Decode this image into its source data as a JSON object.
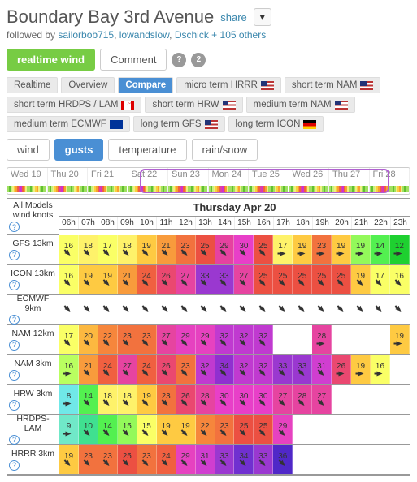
{
  "header": {
    "title": "Boundary Bay 3rd Avenue",
    "share_label": "share",
    "followed_prefix": "followed by ",
    "followers": [
      "sailorbob715",
      "lowandslow",
      "Dschick"
    ],
    "more_followers": "+ 105 others"
  },
  "toolbar": {
    "realtime": "realtime wind",
    "comment": "Comment",
    "comment_count": "2",
    "tabs": [
      "Realtime",
      "Overview",
      "Compare"
    ],
    "active_tab": 2
  },
  "model_pills": [
    {
      "label": "micro term HRRR",
      "flag": "us"
    },
    {
      "label": "short term NAM",
      "flag": "us"
    },
    {
      "label": "short term HRDPS / LAM",
      "flag": "ca"
    },
    {
      "label": "short term HRW",
      "flag": "us"
    },
    {
      "label": "medium term NAM",
      "flag": "us"
    },
    {
      "label": "medium term ECMWF",
      "flag": "eu"
    },
    {
      "label": "long term GFS",
      "flag": "us"
    },
    {
      "label": "long term ICON",
      "flag": "de"
    }
  ],
  "var_tabs": [
    "wind",
    "gusts",
    "temperature",
    "rain/snow"
  ],
  "var_active": 1,
  "day_band": {
    "days": [
      "Wed 19",
      "Thu 20",
      "Fri 21",
      "Sat 22",
      "Sun 23",
      "Mon 24",
      "Tue 25",
      "Wed 26",
      "Thu 27",
      "Fri 28"
    ],
    "sel_start_pct": 33,
    "sel_width_pct": 62,
    "strip_colors": [
      "#a0e060",
      "#60c030",
      "#c8f080",
      "#f0f080",
      "#f8d040",
      "#f8a030",
      "#f06040",
      "#e040a0",
      "#d030d0",
      "#f06040",
      "#f8a030",
      "#f0f080",
      "#a0e060",
      "#a0e060",
      "#60c030",
      "#a0e060",
      "#f0f080",
      "#f8d040",
      "#f8a030",
      "#f0f080",
      "#a0e060",
      "#60c030",
      "#a0e060",
      "#a0e060"
    ]
  },
  "grid": {
    "left_head": [
      "All Models",
      "wind knots"
    ],
    "date_title": "Thursday Apr 20",
    "hours": [
      "06h",
      "07h",
      "08h",
      "09h",
      "10h",
      "11h",
      "12h",
      "13h",
      "14h",
      "15h",
      "16h",
      "17h",
      "18h",
      "19h",
      "20h",
      "21h",
      "22h",
      "23h"
    ],
    "rows": [
      {
        "name": "GFS 13km",
        "cells": [
          {
            "v": "16",
            "c": "#faff66",
            "d": 135
          },
          {
            "v": "18",
            "c": "#fef26a",
            "d": 135
          },
          {
            "v": "17",
            "c": "#faff66",
            "d": 135
          },
          {
            "v": "18",
            "c": "#fef26a",
            "d": 135
          },
          {
            "v": "19",
            "c": "#feca42",
            "d": 135
          },
          {
            "v": "21",
            "c": "#f89b3c",
            "d": 135
          },
          {
            "v": "23",
            "c": "#f2723e",
            "d": 135
          },
          {
            "v": "25",
            "c": "#ec5042",
            "d": 135
          },
          {
            "v": "29",
            "c": "#e642a0",
            "d": 135
          },
          {
            "v": "30",
            "c": "#e83fc8",
            "d": 135
          },
          {
            "v": "25",
            "c": "#ec5042",
            "d": 135
          },
          {
            "v": "17",
            "c": "#fef26a",
            "d": 90
          },
          {
            "v": "19",
            "c": "#feca42",
            "d": 90
          },
          {
            "v": "23",
            "c": "#f2723e",
            "d": 90
          },
          {
            "v": "19",
            "c": "#feca42",
            "d": 90
          },
          {
            "v": "19",
            "c": "#93f95a",
            "d": 90
          },
          {
            "v": "14",
            "c": "#53f050",
            "d": 90
          },
          {
            "v": "12",
            "c": "#1ed030",
            "d": 90
          }
        ]
      },
      {
        "name": "ICON 13km",
        "cells": [
          {
            "v": "16",
            "c": "#faff66",
            "d": 135
          },
          {
            "v": "19",
            "c": "#feca42",
            "d": 135
          },
          {
            "v": "19",
            "c": "#feca42",
            "d": 135
          },
          {
            "v": "21",
            "c": "#f89b3c",
            "d": 135
          },
          {
            "v": "24",
            "c": "#f06040",
            "d": 135
          },
          {
            "v": "26",
            "c": "#ea4870",
            "d": 135
          },
          {
            "v": "27",
            "c": "#e644a0",
            "d": 135
          },
          {
            "v": "33",
            "c": "#9a38d0",
            "d": 135
          },
          {
            "v": "33",
            "c": "#9a38d0",
            "d": 135
          },
          {
            "v": "27",
            "c": "#e644a0",
            "d": 135
          },
          {
            "v": "25",
            "c": "#ec5042",
            "d": 135
          },
          {
            "v": "25",
            "c": "#ec5042",
            "d": 135
          },
          {
            "v": "25",
            "c": "#ec5042",
            "d": 135
          },
          {
            "v": "25",
            "c": "#ec5042",
            "d": 135
          },
          {
            "v": "25",
            "c": "#ec5042",
            "d": 135
          },
          {
            "v": "19",
            "c": "#feca42",
            "d": 135
          },
          {
            "v": "17",
            "c": "#faff66",
            "d": 135
          },
          {
            "v": "16",
            "c": "#faff66",
            "d": 135
          }
        ]
      },
      {
        "name": "ECMWF 9km",
        "cells": [
          {
            "v": "",
            "c": "#fff",
            "d": 135
          },
          {
            "v": "",
            "c": "#fff",
            "d": 135
          },
          {
            "v": "",
            "c": "#fff",
            "d": 135
          },
          {
            "v": "",
            "c": "#fff",
            "d": 135
          },
          {
            "v": "",
            "c": "#fff",
            "d": 135
          },
          {
            "v": "",
            "c": "#fff",
            "d": 135
          },
          {
            "v": "",
            "c": "#fff",
            "d": 135
          },
          {
            "v": "",
            "c": "#fff",
            "d": 135
          },
          {
            "v": "",
            "c": "#fff",
            "d": 135
          },
          {
            "v": "",
            "c": "#fff",
            "d": 135
          },
          {
            "v": "",
            "c": "#fff",
            "d": 135
          },
          {
            "v": "",
            "c": "#fff",
            "d": 135
          },
          {
            "v": "",
            "c": "#fff",
            "d": 135
          },
          {
            "v": "",
            "c": "#fff",
            "d": 135
          },
          {
            "v": "",
            "c": "#fff",
            "d": 135
          },
          {
            "v": "",
            "c": "#fff",
            "d": 135
          },
          {
            "v": "",
            "c": "#fff",
            "d": 135
          },
          {
            "v": "",
            "c": "#fff",
            "d": 135
          }
        ]
      },
      {
        "name": "NAM 12km",
        "cells": [
          {
            "v": "17",
            "c": "#faff66",
            "d": 135
          },
          {
            "v": "20",
            "c": "#fcb840",
            "d": 135
          },
          {
            "v": "22",
            "c": "#f6863c",
            "d": 135
          },
          {
            "v": "23",
            "c": "#f2723e",
            "d": 135
          },
          {
            "v": "23",
            "c": "#f2723e",
            "d": 135
          },
          {
            "v": "27",
            "c": "#e644a0",
            "d": 135
          },
          {
            "v": "29",
            "c": "#e642c0",
            "d": 135
          },
          {
            "v": "29",
            "c": "#e642c0",
            "d": 135
          },
          {
            "v": "32",
            "c": "#c03ad0",
            "d": 135
          },
          {
            "v": "32",
            "c": "#c03ad0",
            "d": 135
          },
          {
            "v": "32",
            "c": "#c03ad0",
            "d": 135
          },
          null,
          null,
          {
            "v": "28",
            "c": "#e644a0",
            "d": 90
          },
          null,
          null,
          null,
          {
            "v": "19",
            "c": "#feca42",
            "d": 90
          }
        ]
      },
      {
        "name": "NAM 3km",
        "cells": [
          {
            "v": "16",
            "c": "#b9ff60",
            "d": 90
          },
          {
            "v": "21",
            "c": "#f89b3c",
            "d": 135
          },
          {
            "v": "24",
            "c": "#f06040",
            "d": 135
          },
          {
            "v": "27",
            "c": "#e644a0",
            "d": 135
          },
          {
            "v": "24",
            "c": "#f06040",
            "d": 135
          },
          {
            "v": "26",
            "c": "#ea4870",
            "d": 135
          },
          {
            "v": "23",
            "c": "#f2723e",
            "d": 135
          },
          {
            "v": "32",
            "c": "#c03ad0",
            "d": 135
          },
          {
            "v": "34",
            "c": "#9030d0",
            "d": 135
          },
          {
            "v": "32",
            "c": "#c03ad0",
            "d": 135
          },
          {
            "v": "32",
            "c": "#c03ad0",
            "d": 135
          },
          {
            "v": "33",
            "c": "#9a38d0",
            "d": 135
          },
          {
            "v": "33",
            "c": "#9a38d0",
            "d": 135
          },
          {
            "v": "31",
            "c": "#d03ed0",
            "d": 135
          },
          {
            "v": "26",
            "c": "#ea4870",
            "d": 90
          },
          {
            "v": "19",
            "c": "#feca42",
            "d": 90
          },
          {
            "v": "16",
            "c": "#faff66",
            "d": 90
          },
          null
        ]
      },
      {
        "name": "HRW 3km",
        "cells": [
          {
            "v": "8",
            "c": "#70e8e8",
            "d": 90
          },
          {
            "v": "14",
            "c": "#53f050",
            "d": 135
          },
          {
            "v": "18",
            "c": "#fef26a",
            "d": 135
          },
          {
            "v": "18",
            "c": "#fef26a",
            "d": 135
          },
          {
            "v": "19",
            "c": "#feca42",
            "d": 135
          },
          {
            "v": "23",
            "c": "#f2723e",
            "d": 135
          },
          {
            "v": "26",
            "c": "#ea4870",
            "d": 135
          },
          {
            "v": "28",
            "c": "#e644a0",
            "d": 135
          },
          {
            "v": "30",
            "c": "#e83fc8",
            "d": 135
          },
          {
            "v": "30",
            "c": "#e83fc8",
            "d": 135
          },
          {
            "v": "30",
            "c": "#e83fc8",
            "d": 135
          },
          {
            "v": "27",
            "c": "#e644a0",
            "d": 135
          },
          {
            "v": "28",
            "c": "#e644a0",
            "d": 135
          },
          {
            "v": "27",
            "c": "#e644a0",
            "d": 135
          },
          null,
          null,
          null,
          null
        ]
      },
      {
        "name": "HRDPS-LAM",
        "cells": [
          {
            "v": "9",
            "c": "#70e8c8",
            "d": 90
          },
          {
            "v": "10",
            "c": "#40e090",
            "d": 135
          },
          {
            "v": "14",
            "c": "#53f050",
            "d": 135
          },
          {
            "v": "15",
            "c": "#93f95a",
            "d": 135
          },
          {
            "v": "15",
            "c": "#faff66",
            "d": 135
          },
          {
            "v": "19",
            "c": "#feca42",
            "d": 135
          },
          {
            "v": "19",
            "c": "#feca42",
            "d": 135
          },
          {
            "v": "22",
            "c": "#f6863c",
            "d": 135
          },
          {
            "v": "23",
            "c": "#f2723e",
            "d": 135
          },
          {
            "v": "25",
            "c": "#ec5042",
            "d": 135
          },
          {
            "v": "25",
            "c": "#ec5042",
            "d": 135
          },
          {
            "v": "29",
            "c": "#e642c0",
            "d": 135
          },
          null,
          null,
          null,
          null,
          null,
          null
        ]
      },
      {
        "name": "HRRR 3km",
        "cells": [
          {
            "v": "19",
            "c": "#feca42",
            "d": 135
          },
          {
            "v": "23",
            "c": "#f2723e",
            "d": 135
          },
          {
            "v": "23",
            "c": "#f2723e",
            "d": 135
          },
          {
            "v": "25",
            "c": "#ec5042",
            "d": 135
          },
          {
            "v": "23",
            "c": "#f2723e",
            "d": 135
          },
          {
            "v": "24",
            "c": "#f06040",
            "d": 135
          },
          {
            "v": "29",
            "c": "#e642c0",
            "d": 135
          },
          {
            "v": "31",
            "c": "#d03ed0",
            "d": 135
          },
          {
            "v": "33",
            "c": "#9a38d0",
            "d": 135
          },
          {
            "v": "34",
            "c": "#7030d0",
            "d": 135
          },
          {
            "v": "33",
            "c": "#9a38d0",
            "d": 135
          },
          {
            "v": "36",
            "c": "#5028c8",
            "d": 135
          },
          null,
          null,
          null,
          null,
          null,
          null
        ]
      }
    ]
  }
}
